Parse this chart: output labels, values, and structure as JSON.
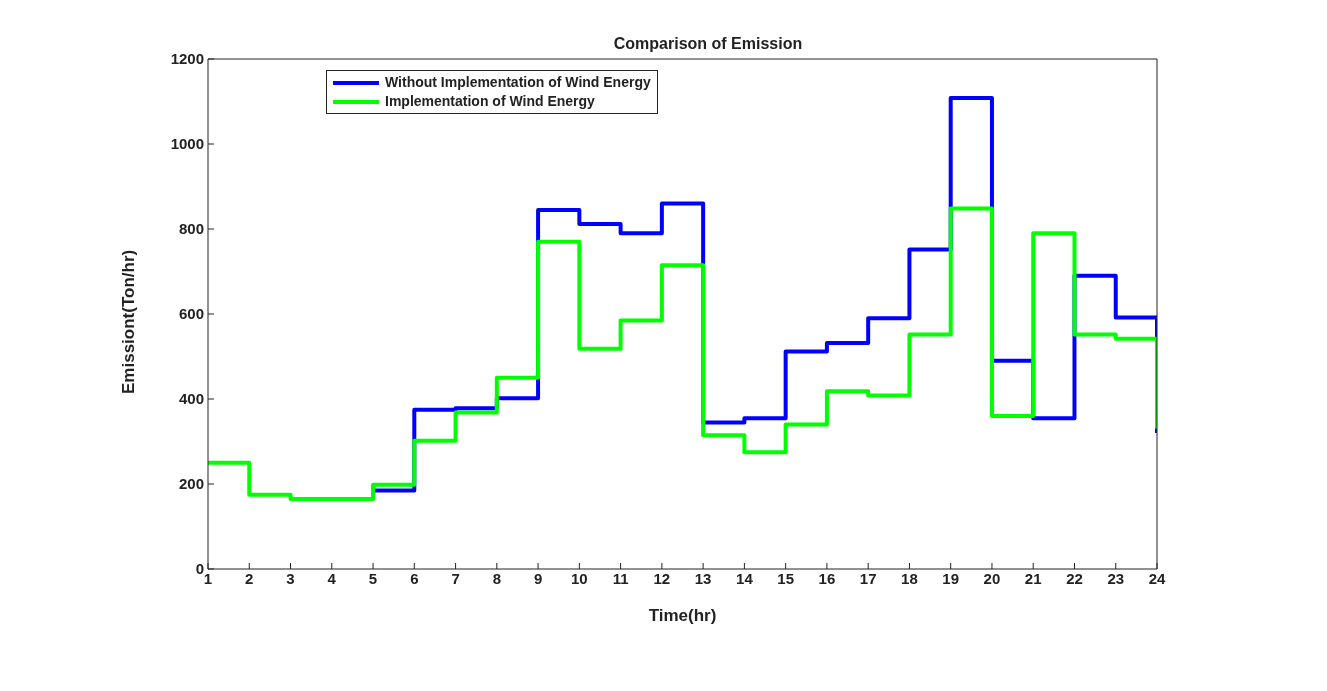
{
  "chart_data": {
    "type": "step",
    "title": "Comparison of Emission",
    "xlabel": "Time(hr)",
    "ylabel": "Emissiont(Ton/hr)",
    "x": [
      1,
      2,
      3,
      4,
      5,
      6,
      7,
      8,
      9,
      10,
      11,
      12,
      13,
      14,
      15,
      16,
      17,
      18,
      19,
      20,
      21,
      22,
      23,
      24
    ],
    "series": [
      {
        "name": "Without Implementation of Wind Energy",
        "color": "#0000ff",
        "values": [
          null,
          null,
          null,
          null,
          185,
          375,
          378,
          402,
          845,
          812,
          790,
          860,
          345,
          355,
          512,
          532,
          590,
          752,
          1108,
          490,
          355,
          690,
          592,
          320
        ]
      },
      {
        "name": "Implementation of Wind Energy",
        "color": "#00ff00",
        "values": [
          250,
          175,
          165,
          165,
          198,
          302,
          368,
          450,
          770,
          518,
          585,
          715,
          315,
          275,
          340,
          418,
          408,
          552,
          848,
          360,
          790,
          552,
          542,
          330
        ]
      }
    ],
    "xlim": [
      1,
      24
    ],
    "xticks": [
      1,
      2,
      3,
      4,
      5,
      6,
      7,
      8,
      9,
      10,
      11,
      12,
      13,
      14,
      15,
      16,
      17,
      18,
      19,
      20,
      21,
      22,
      23,
      24
    ],
    "ylim": [
      0,
      1200
    ],
    "yticks": [
      0,
      200,
      400,
      600,
      800,
      1000,
      1200
    ],
    "grid": false,
    "legend": "top left",
    "line_style": "solid",
    "marker": "none"
  }
}
